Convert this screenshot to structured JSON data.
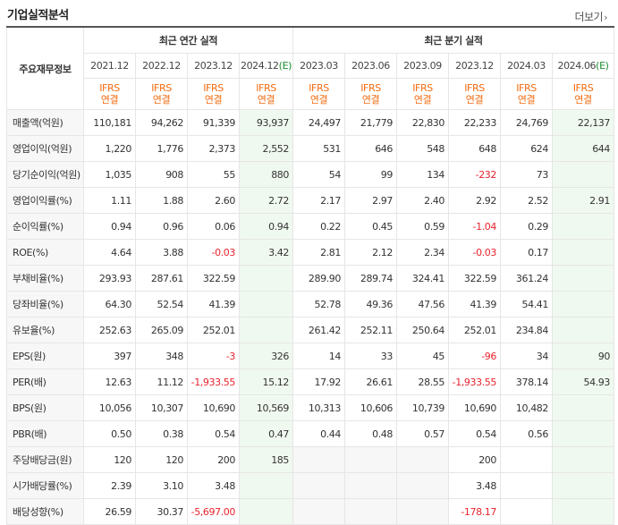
{
  "header": {
    "title": "기업실적분석",
    "more_label": "더보기"
  },
  "table": {
    "label_header": "주요재무정보",
    "annual_group": "최근 연간 실적",
    "quarter_group": "최근 분기 실적",
    "annual_periods": [
      "2021.12",
      "2022.12",
      "2023.12",
      "2024.12"
    ],
    "estimate_mark": "(E)",
    "quarter_periods": [
      "2023.03",
      "2023.06",
      "2023.09",
      "2023.12",
      "2024.03",
      "2024.06"
    ],
    "ifrs_top": "IFRS",
    "ifrs_bottom": "연결",
    "rows": [
      {
        "label": "매출액(억원)",
        "values": [
          "110,181",
          "94,262",
          "91,339",
          "93,937",
          "24,497",
          "21,779",
          "22,830",
          "22,233",
          "24,769",
          "22,137"
        ]
      },
      {
        "label": "영업이익(억원)",
        "values": [
          "1,220",
          "1,776",
          "2,373",
          "2,552",
          "531",
          "646",
          "548",
          "648",
          "624",
          "644"
        ]
      },
      {
        "label": "당기순이익(억원)",
        "values": [
          "1,035",
          "908",
          "55",
          "880",
          "54",
          "99",
          "134",
          "-232",
          "73",
          ""
        ]
      },
      {
        "label": "영업이익률(%)",
        "values": [
          "1.11",
          "1.88",
          "2.60",
          "2.72",
          "2.17",
          "2.97",
          "2.40",
          "2.92",
          "2.52",
          "2.91"
        ]
      },
      {
        "label": "순이익률(%)",
        "values": [
          "0.94",
          "0.96",
          "0.06",
          "0.94",
          "0.22",
          "0.45",
          "0.59",
          "-1.04",
          "0.29",
          ""
        ]
      },
      {
        "label": "ROE(%)",
        "values": [
          "4.64",
          "3.88",
          "-0.03",
          "3.42",
          "2.81",
          "2.12",
          "2.34",
          "-0.03",
          "0.17",
          ""
        ]
      },
      {
        "label": "부채비율(%)",
        "values": [
          "293.93",
          "287.61",
          "322.59",
          "",
          "289.90",
          "289.74",
          "324.41",
          "322.59",
          "361.24",
          ""
        ]
      },
      {
        "label": "당좌비율(%)",
        "values": [
          "64.30",
          "52.54",
          "41.39",
          "",
          "52.78",
          "49.36",
          "47.56",
          "41.39",
          "54.41",
          ""
        ]
      },
      {
        "label": "유보율(%)",
        "values": [
          "252.63",
          "265.09",
          "252.01",
          "",
          "261.42",
          "252.11",
          "250.64",
          "252.01",
          "234.84",
          ""
        ]
      },
      {
        "label": "EPS(원)",
        "values": [
          "397",
          "348",
          "-3",
          "326",
          "14",
          "33",
          "45",
          "-96",
          "34",
          "90"
        ]
      },
      {
        "label": "PER(배)",
        "values": [
          "12.63",
          "11.12",
          "-1,933.55",
          "15.12",
          "17.92",
          "26.61",
          "28.55",
          "-1,933.55",
          "378.14",
          "54.93"
        ]
      },
      {
        "label": "BPS(원)",
        "values": [
          "10,056",
          "10,307",
          "10,690",
          "10,569",
          "10,313",
          "10,606",
          "10,739",
          "10,690",
          "10,482",
          ""
        ]
      },
      {
        "label": "PBR(배)",
        "values": [
          "0.50",
          "0.38",
          "0.54",
          "0.47",
          "0.44",
          "0.48",
          "0.57",
          "0.54",
          "0.56",
          ""
        ]
      },
      {
        "label": "주당배당금(원)",
        "values": [
          "120",
          "120",
          "200",
          "185",
          "",
          "",
          "",
          "200",
          "",
          ""
        ]
      },
      {
        "label": "시가배당률(%)",
        "values": [
          "2.39",
          "3.10",
          "3.48",
          "",
          "",
          "",
          "",
          "3.48",
          "",
          ""
        ]
      },
      {
        "label": "배당성향(%)",
        "values": [
          "26.59",
          "30.37",
          "-5,697.00",
          "",
          "",
          "",
          "",
          "-178.17",
          "",
          ""
        ]
      }
    ]
  }
}
